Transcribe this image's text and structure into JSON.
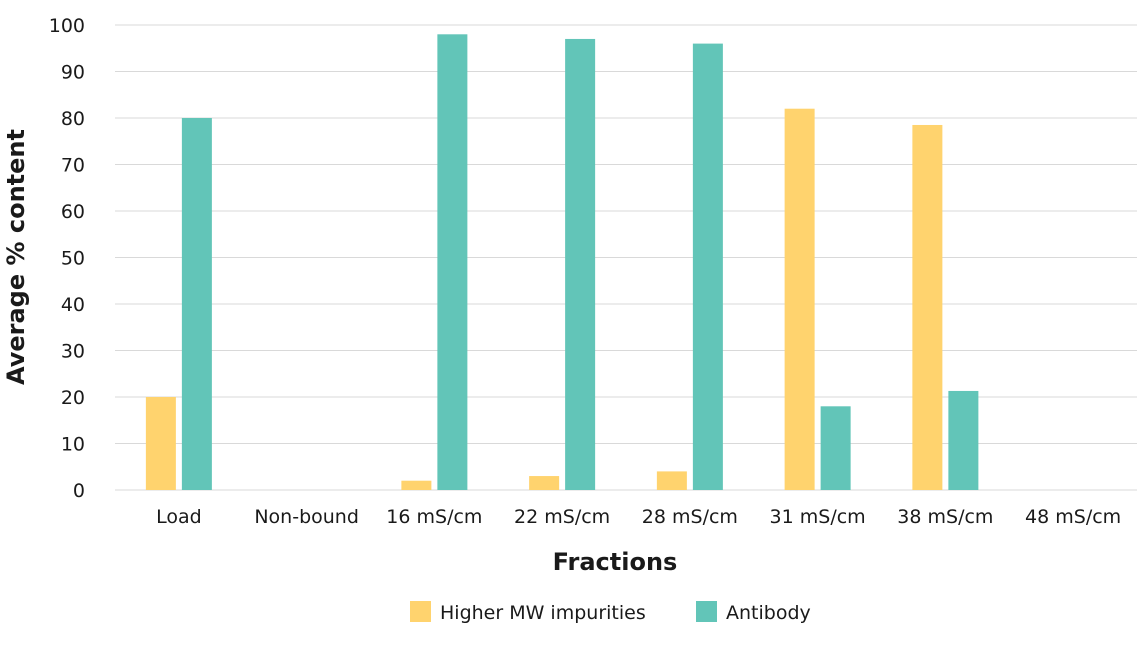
{
  "chart_data": {
    "type": "bar",
    "title": "",
    "xlabel": "Fractions",
    "ylabel": "Average % content",
    "ylim": [
      0,
      100
    ],
    "yticks": [
      0,
      10,
      20,
      30,
      40,
      50,
      60,
      70,
      80,
      90,
      100
    ],
    "grid": true,
    "legend_position": "bottom",
    "categories": [
      "Load",
      "Non-bound",
      "16 mS/cm",
      "22 mS/cm",
      "28 mS/cm",
      "31 mS/cm",
      "38 mS/cm",
      "48 mS/cm"
    ],
    "series": [
      {
        "name": "Higher MW impurities",
        "color": "#FFD36E",
        "values": [
          20,
          0,
          2,
          3,
          4,
          82,
          78.5,
          0
        ]
      },
      {
        "name": "Antibody",
        "color": "#62C5B8",
        "values": [
          80,
          0,
          98,
          97,
          96,
          18,
          21.3,
          0
        ]
      }
    ]
  }
}
